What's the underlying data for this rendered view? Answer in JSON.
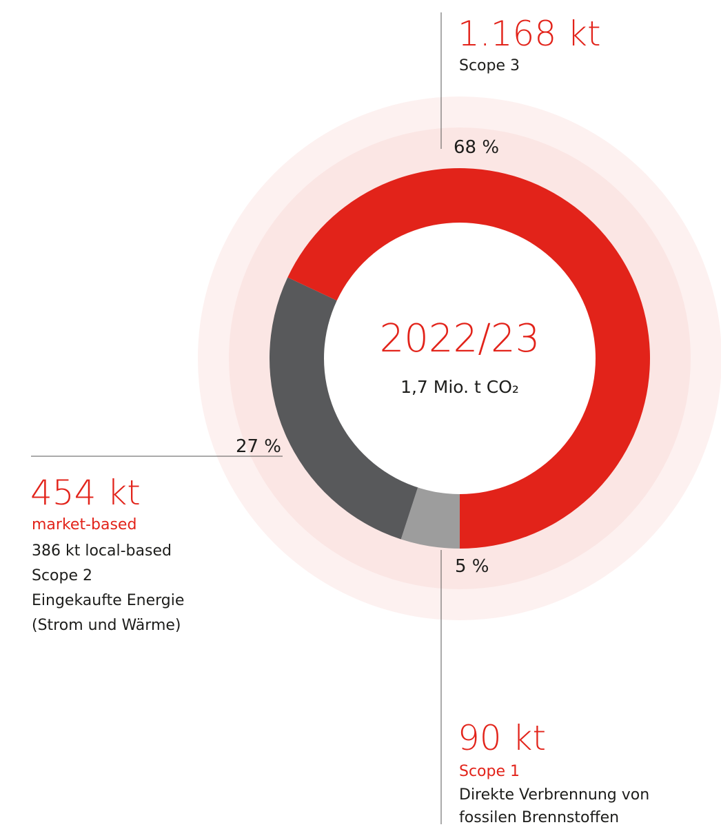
{
  "chart_data": {
    "type": "donut",
    "title": "2022/23",
    "subtitle": "1,7 Mio. t CO₂",
    "categories": [
      "Scope 3",
      "Scope 2",
      "Scope 1"
    ],
    "values": [
      68,
      27,
      5
    ],
    "value_labels": [
      "68 %",
      "27 %",
      "5 %"
    ],
    "colors": [
      "#e2231a",
      "#58595b",
      "#9d9d9d"
    ],
    "amount_labels": [
      "1.168 kt",
      "454 kt",
      "90 kt"
    ],
    "notes": {
      "scope2_market": "market-based",
      "scope2_local": "386 kt local-based",
      "scope2_text": [
        "Eingekaufte Energie",
        "(Strom und Wärme)"
      ],
      "scope1_text": [
        "Direkte Verbrennung von",
        "fossilen Brennstoffen"
      ]
    }
  }
}
